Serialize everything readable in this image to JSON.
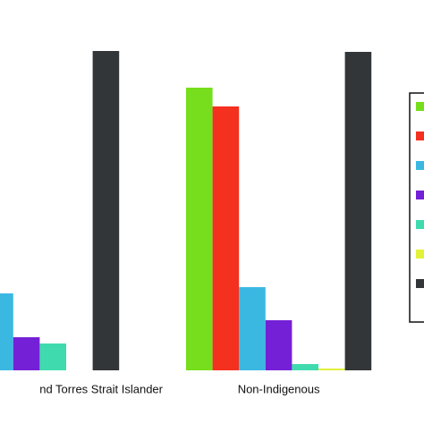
{
  "chart_data": {
    "type": "bar",
    "categories": [
      "nd Torres Strait Islander",
      "Non-Indigenous"
    ],
    "series": [
      {
        "color": "#76de1c",
        "values": [
          null,
          316
        ]
      },
      {
        "color": "#f4301f",
        "values": [
          null,
          295
        ]
      },
      {
        "color": "#3bb8e2",
        "values": [
          86,
          93
        ]
      },
      {
        "color": "#7420d6",
        "values": [
          37,
          56
        ]
      },
      {
        "color": "#3fdbaf",
        "values": [
          30,
          7
        ]
      },
      {
        "color": "#e2f23a",
        "values": [
          0,
          2
        ]
      },
      {
        "color": "#323638",
        "values": [
          357,
          356
        ]
      }
    ],
    "ylim": [
      0,
      360
    ]
  }
}
